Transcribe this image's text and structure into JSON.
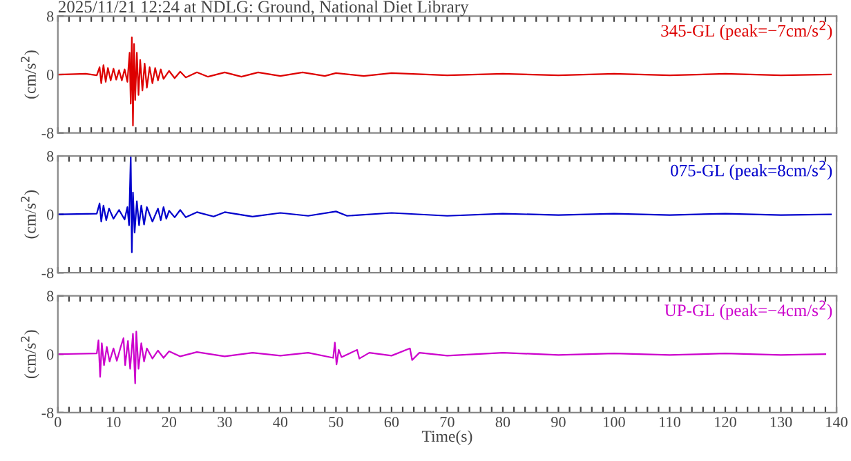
{
  "chart_data": [
    {
      "type": "line",
      "title": "2025/11/21 12:24 at NDLG: Ground, National Diet Library",
      "ylabel": "(cm/s$^{2}$)",
      "annotations": [
        "345-GL (peak=−7cm/s$^{2}$)"
      ],
      "xlim": [
        0,
        140
      ],
      "ylim": [
        -8,
        8
      ],
      "yticks": [
        8,
        0,
        -8
      ],
      "tick_labels": "y",
      "grid": false,
      "legend": false,
      "marker": "none",
      "line_style": "solid",
      "series": [
        {
          "color": "#dd0000",
          "x": [
            0,
            5,
            7,
            7.5,
            7.8,
            8.2,
            8.6,
            9,
            9.5,
            10,
            10.5,
            11,
            11.5,
            12,
            12.5,
            12.9,
            13.1,
            13.3,
            13.5,
            13.7,
            13.9,
            14.2,
            14.5,
            14.8,
            15.2,
            15.6,
            16,
            16.5,
            17,
            17.5,
            18,
            18.5,
            19,
            20,
            21,
            22,
            23,
            25,
            27,
            30,
            33,
            36,
            40,
            44,
            48,
            50,
            55,
            60,
            70,
            80,
            90,
            100,
            110,
            120,
            130,
            139
          ],
          "values": [
            0,
            0.1,
            -0.1,
            1.0,
            -1.2,
            1.3,
            -1.0,
            0.9,
            -0.8,
            0.8,
            -0.7,
            0.6,
            -0.8,
            0.7,
            -1.0,
            3.0,
            -4.0,
            5.1,
            -7.0,
            4.2,
            -3.5,
            3.0,
            -2.8,
            2.0,
            -2.2,
            1.5,
            -1.8,
            1.0,
            -1.2,
            0.9,
            -0.8,
            0.7,
            -0.6,
            0.5,
            -0.5,
            0.4,
            -0.4,
            0.3,
            -0.3,
            0.3,
            -0.3,
            0.3,
            -0.2,
            0.3,
            -0.2,
            0.2,
            -0.2,
            0.2,
            -0.1,
            0.1,
            -0.1,
            0.1,
            -0.1,
            0.1,
            -0.1,
            0
          ]
        }
      ]
    },
    {
      "type": "line",
      "ylabel": "(cm/s$^{2}$)",
      "annotations": [
        "075-GL (peak=8cm/s$^{2}$)"
      ],
      "xlim": [
        0,
        140
      ],
      "ylim": [
        -8,
        8
      ],
      "yticks": [
        8,
        0,
        -8
      ],
      "tick_labels": "y",
      "grid": false,
      "legend": false,
      "marker": "none",
      "line_style": "solid",
      "series": [
        {
          "color": "#0000cc",
          "x": [
            0,
            7,
            7.5,
            7.8,
            8.2,
            8.7,
            9.2,
            10,
            11,
            12,
            12.5,
            12.8,
            13.1,
            13.3,
            13.5,
            13.8,
            14.2,
            14.6,
            15,
            15.5,
            16,
            17,
            18,
            18.5,
            19,
            19.5,
            20,
            21,
            22,
            23,
            25,
            28,
            30,
            35,
            40,
            45,
            50,
            52,
            60,
            70,
            80,
            90,
            100,
            110,
            120,
            130,
            139
          ],
          "values": [
            0,
            0.1,
            1.5,
            -1.0,
            1.2,
            -0.8,
            0.8,
            -0.6,
            0.6,
            -0.7,
            1.0,
            -1.5,
            8.0,
            -5.2,
            3.0,
            -2.5,
            1.8,
            -1.5,
            1.2,
            -1.4,
            1.0,
            -1.0,
            0.8,
            -0.8,
            1.0,
            -0.6,
            0.5,
            -0.4,
            0.6,
            -0.4,
            0.3,
            -0.3,
            0.3,
            -0.3,
            0.2,
            -0.2,
            0.4,
            -0.2,
            0.2,
            -0.2,
            0.1,
            -0.1,
            0.1,
            -0.1,
            0.1,
            -0.1,
            0
          ]
        }
      ]
    },
    {
      "type": "line",
      "ylabel": "(cm/s$^{2}$)",
      "xlabel": "Time(s)",
      "annotations": [
        "UP-GL (peak=−4cm/s$^{2}$)"
      ],
      "xlim": [
        0,
        140
      ],
      "ylim": [
        -8,
        8
      ],
      "yticks": [
        8,
        0,
        -8
      ],
      "xticks": [
        0,
        {
          "value": 2,
          "label": null
        },
        {
          "value": 4,
          "label": null
        },
        {
          "value": 6,
          "label": null
        },
        {
          "value": 8,
          "label": null
        },
        10,
        {
          "value": 12,
          "label": null
        },
        {
          "value": 14,
          "label": null
        },
        {
          "value": 16,
          "label": null
        },
        {
          "value": 18,
          "label": null
        },
        20,
        {
          "value": 22,
          "label": null
        },
        {
          "value": 24,
          "label": null
        },
        {
          "value": 26,
          "label": null
        },
        {
          "value": 28,
          "label": null
        },
        30,
        {
          "value": 32,
          "label": null
        },
        {
          "value": 34,
          "label": null
        },
        {
          "value": 36,
          "label": null
        },
        {
          "value": 38,
          "label": null
        },
        40,
        {
          "value": 42,
          "label": null
        },
        {
          "value": 44,
          "label": null
        },
        {
          "value": 46,
          "label": null
        },
        {
          "value": 48,
          "label": null
        },
        50,
        {
          "value": 52,
          "label": null
        },
        {
          "value": 54,
          "label": null
        },
        {
          "value": 56,
          "label": null
        },
        {
          "value": 58,
          "label": null
        },
        60,
        {
          "value": 62,
          "label": null
        },
        {
          "value": 64,
          "label": null
        },
        {
          "value": 66,
          "label": null
        },
        {
          "value": 68,
          "label": null
        },
        70,
        {
          "value": 72,
          "label": null
        },
        {
          "value": 74,
          "label": null
        },
        {
          "value": 76,
          "label": null
        },
        {
          "value": 78,
          "label": null
        },
        80,
        {
          "value": 82,
          "label": null
        },
        {
          "value": 84,
          "label": null
        },
        {
          "value": 86,
          "label": null
        },
        {
          "value": 88,
          "label": null
        },
        90,
        {
          "value": 92,
          "label": null
        },
        {
          "value": 94,
          "label": null
        },
        {
          "value": 96,
          "label": null
        },
        {
          "value": 98,
          "label": null
        },
        100,
        {
          "value": 102,
          "label": null
        },
        {
          "value": 104,
          "label": null
        },
        {
          "value": 106,
          "label": null
        },
        {
          "value": 108,
          "label": null
        },
        110,
        {
          "value": 112,
          "label": null
        },
        {
          "value": 114,
          "label": null
        },
        {
          "value": 116,
          "label": null
        },
        {
          "value": 118,
          "label": null
        },
        120,
        {
          "value": 122,
          "label": null
        },
        {
          "value": 124,
          "label": null
        },
        {
          "value": 126,
          "label": null
        },
        {
          "value": 128,
          "label": null
        },
        130,
        {
          "value": 132,
          "label": null
        },
        {
          "value": 134,
          "label": null
        },
        {
          "value": 136,
          "label": null
        },
        {
          "value": 138,
          "label": null
        },
        140
      ],
      "grid": false,
      "legend": false,
      "marker": "none",
      "line_style": "solid",
      "series": [
        {
          "color": "#cc00cc",
          "x": [
            0,
            7,
            7.3,
            7.6,
            7.9,
            8.3,
            8.8,
            9.3,
            10,
            10.6,
            11.3,
            11.8,
            12.1,
            12.6,
            13,
            13.5,
            13.9,
            14.1,
            14.5,
            15,
            15.5,
            16,
            17,
            18,
            19,
            20,
            22,
            25,
            30,
            35,
            40,
            45,
            49.5,
            49.8,
            50.1,
            50.5,
            51,
            53.8,
            54.2,
            56,
            60,
            63.3,
            63.7,
            65,
            70,
            80,
            90,
            100,
            110,
            120,
            130,
            138
          ],
          "values": [
            0,
            0.1,
            1.9,
            -3.1,
            1.5,
            -1.5,
            1.0,
            -1.0,
            0.8,
            -0.9,
            1.0,
            2.2,
            -1.5,
            1.8,
            -2.0,
            2.8,
            -4.0,
            3.1,
            -2.0,
            1.5,
            -1.0,
            0.8,
            -0.6,
            0.5,
            -0.5,
            0.4,
            -0.3,
            0.3,
            -0.3,
            0.2,
            -0.2,
            0.2,
            -0.5,
            1.6,
            -1.4,
            0.6,
            -0.4,
            0.6,
            -0.6,
            0.2,
            -0.2,
            0.8,
            -0.8,
            0.2,
            -0.2,
            0.2,
            -0.1,
            0.1,
            -0.1,
            0.1,
            -0.1,
            0
          ]
        }
      ]
    }
  ]
}
